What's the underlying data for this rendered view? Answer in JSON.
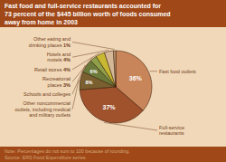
{
  "chart_data": {
    "type": "pie",
    "title": "Fast food and full-service restaurants accounted for\n73 percent of the $445 billion worth of foods consumed\naway from home in 2003",
    "annotations": [
      "Note: Percentages do not sum to 100 because of rounding.\nSource: ERS Food Expenditure series."
    ],
    "categories": [
      "Fast food outlets",
      "Full-service\nrestaurants",
      "Other noncommercial\noutlets, including medical\nand military outlets",
      "Schools and colleges",
      "Recreational\nplaces",
      "Retail stores",
      "Hotels and\nmotels",
      "Other eating and\ndrinking places"
    ],
    "values": [
      36,
      37,
      8,
      6,
      3,
      4,
      4,
      1
    ],
    "value_labels": [
      "36%",
      "37%",
      "8%",
      "6%",
      "3%",
      "4%",
      "4%",
      "1%"
    ],
    "colors": [
      "#c8855a",
      "#a0522d",
      "#7a6030",
      "#6b7a3a",
      "#8fa04a",
      "#c8b832",
      "#d4b898",
      "#c8a07a"
    ],
    "data_labels": true
  }
}
